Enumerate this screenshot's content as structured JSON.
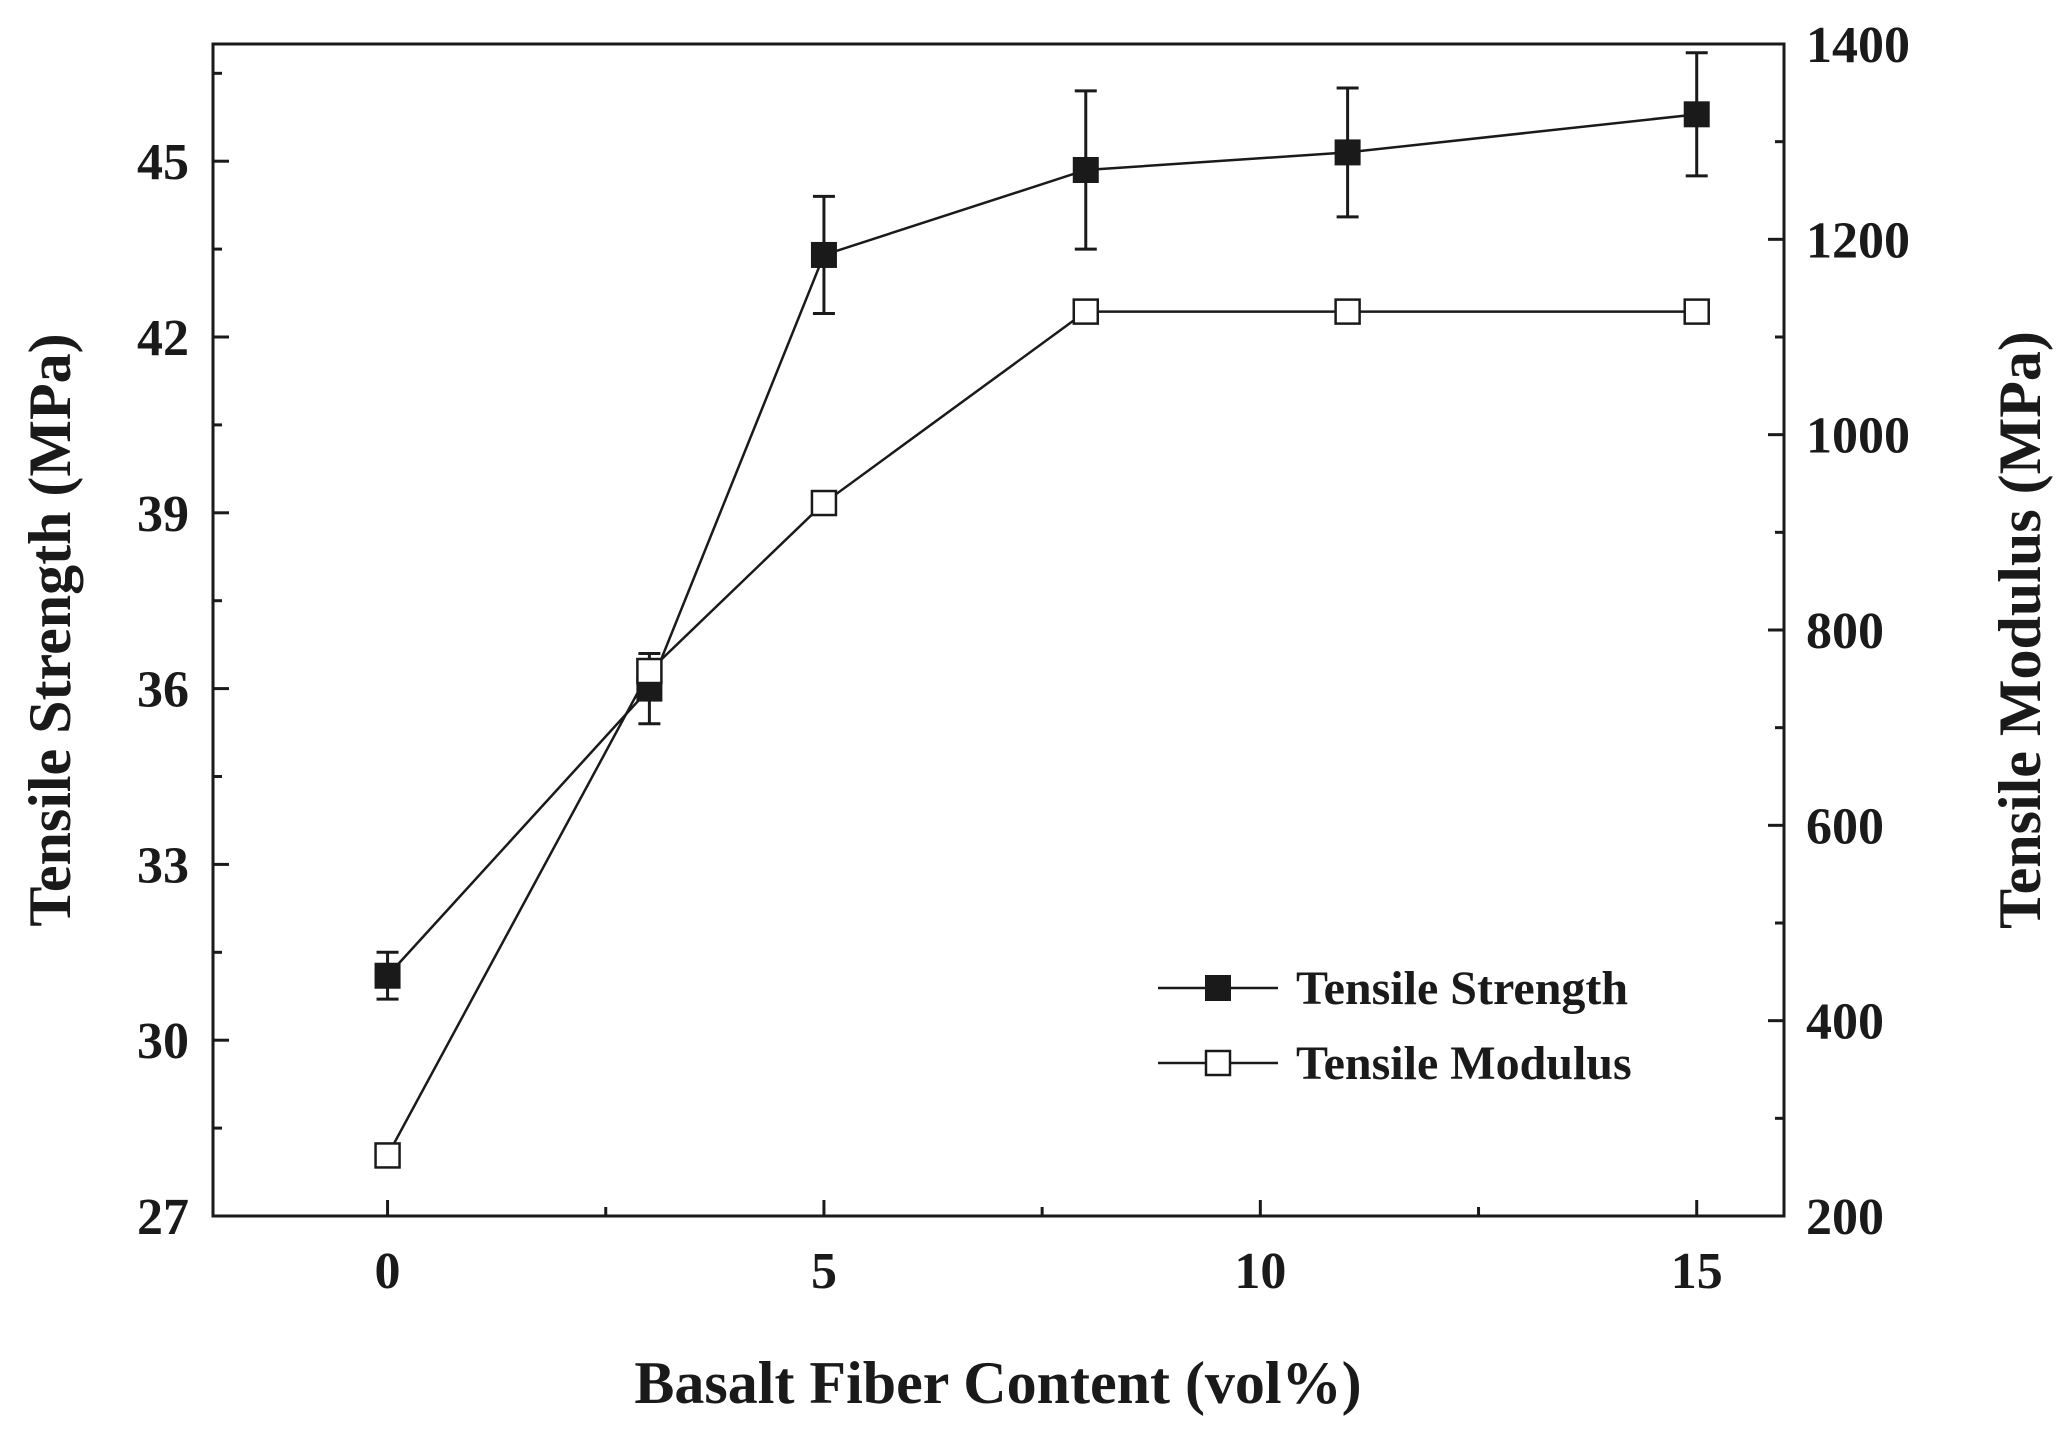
{
  "chart_data": {
    "type": "line",
    "title": "",
    "xlabel": "Basalt Fiber Content (vol%)",
    "ylabel_left": "Tensile Strength (MPa)",
    "ylabel_right": "Tensile Modulus (MPa)",
    "xlim": [
      -2,
      16
    ],
    "ylim_left": [
      27,
      47
    ],
    "ylim_right": [
      200,
      1400
    ],
    "xticks": [
      0,
      5,
      10,
      15
    ],
    "xticks_minor": [
      2.5,
      7.5,
      12.5
    ],
    "yticks_left": [
      27,
      30,
      33,
      36,
      39,
      42,
      45
    ],
    "yticks_right": [
      200,
      400,
      600,
      800,
      1000,
      1200,
      1400
    ],
    "legend_position": "bottom-right",
    "x": [
      0,
      3,
      5,
      8,
      11,
      15
    ],
    "series": [
      {
        "name": "Tensile Strength",
        "axis": "left",
        "marker": "filled-square",
        "values": [
          31.1,
          36.0,
          43.4,
          44.85,
          45.15,
          45.8
        ],
        "errors": [
          0.4,
          0.6,
          1.0,
          1.35,
          1.1,
          1.05
        ]
      },
      {
        "name": "Tensile Modulus",
        "axis": "right",
        "marker": "open-square",
        "values": [
          262,
          758,
          930,
          1126,
          1126,
          1126
        ],
        "errors": [
          0,
          0,
          0,
          0,
          0,
          0
        ]
      }
    ]
  }
}
